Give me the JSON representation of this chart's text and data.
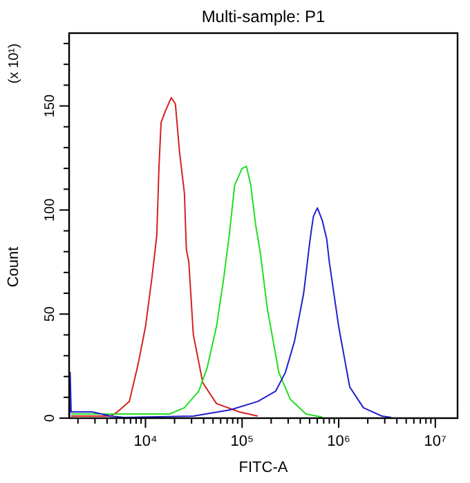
{
  "chart_data": {
    "type": "line",
    "title": "Multi-sample: P1",
    "xlabel": "FITC-A",
    "ylabel": "Count",
    "annotations": [
      "(x 10¹)"
    ],
    "log": "x",
    "marker": "none",
    "grid": false,
    "xlim": [
      1620,
      17000000
    ],
    "xticks": [
      {
        "value": 2000,
        "label": null
      },
      {
        "value": 3000,
        "label": null
      },
      {
        "value": 4000,
        "label": null
      },
      {
        "value": 5000,
        "label": null
      },
      {
        "value": 6000,
        "label": null
      },
      {
        "value": 7000,
        "label": null
      },
      {
        "value": 8000,
        "label": null
      },
      {
        "value": 9000,
        "label": null
      },
      {
        "value": 10000,
        "label": "10⁴"
      },
      {
        "value": 20000,
        "label": null
      },
      {
        "value": 30000,
        "label": null
      },
      {
        "value": 40000,
        "label": null
      },
      {
        "value": 50000,
        "label": null
      },
      {
        "value": 60000,
        "label": null
      },
      {
        "value": 70000,
        "label": null
      },
      {
        "value": 80000,
        "label": null
      },
      {
        "value": 90000,
        "label": null
      },
      {
        "value": 100000,
        "label": "10⁵"
      },
      {
        "value": 200000,
        "label": null
      },
      {
        "value": 300000,
        "label": null
      },
      {
        "value": 400000,
        "label": null
      },
      {
        "value": 500000,
        "label": null
      },
      {
        "value": 600000,
        "label": null
      },
      {
        "value": 700000,
        "label": null
      },
      {
        "value": 800000,
        "label": null
      },
      {
        "value": 900000,
        "label": null
      },
      {
        "value": 1000000,
        "label": "10⁶"
      },
      {
        "value": 2000000,
        "label": null
      },
      {
        "value": 3000000,
        "label": null
      },
      {
        "value": 4000000,
        "label": null
      },
      {
        "value": 5000000,
        "label": null
      },
      {
        "value": 6000000,
        "label": null
      },
      {
        "value": 7000000,
        "label": null
      },
      {
        "value": 8000000,
        "label": null
      },
      {
        "value": 9000000,
        "label": null
      },
      {
        "value": 10000000,
        "label": "10⁷"
      }
    ],
    "ylim": [
      0,
      185
    ],
    "yticks": [
      0,
      {
        "value": 10,
        "label": null
      },
      {
        "value": 20,
        "label": null
      },
      {
        "value": 30,
        "label": null
      },
      {
        "value": 40,
        "label": null
      },
      50,
      {
        "value": 60,
        "label": null
      },
      {
        "value": 70,
        "label": null
      },
      {
        "value": 80,
        "label": null
      },
      {
        "value": 90,
        "label": null
      },
      100,
      {
        "value": 110,
        "label": null
      },
      {
        "value": 120,
        "label": null
      },
      {
        "value": 130,
        "label": null
      },
      {
        "value": 140,
        "label": null
      },
      150,
      {
        "value": 160,
        "label": null
      },
      {
        "value": 170,
        "label": null
      },
      {
        "value": 180,
        "label": null
      }
    ],
    "series": [
      {
        "color": "#d62020",
        "x": [
          1700,
          4365,
          5130,
          6800,
          8400,
          10000,
          11700,
          13100,
          13800,
          14500,
          16200,
          18500,
          20400,
          22500,
          25300,
          26500,
          28100,
          31300,
          39200,
          54300,
          93800,
          145000
        ],
        "values": [
          1,
          1,
          3,
          8,
          26,
          44,
          68,
          88,
          121,
          142,
          148,
          154,
          151,
          128,
          108,
          81,
          75,
          40,
          17,
          7,
          3,
          1
        ]
      },
      {
        "color": "#22dd22",
        "x": [
          1700,
          17800,
          25300,
          35600,
          43400,
          54300,
          64000,
          73700,
          83800,
          100000,
          111000,
          123000,
          138000,
          155000,
          182000,
          240000,
          316000,
          458000,
          676000
        ],
        "values": [
          2,
          2,
          5,
          13,
          24,
          44,
          66,
          88,
          112,
          120,
          121,
          112,
          93,
          79,
          53,
          22,
          9,
          2,
          0.5
        ]
      },
      {
        "color": "#2020cc",
        "x": [
          1640,
          1660,
          1700,
          2820,
          4365,
          6000,
          31300,
          75400,
          145000,
          223000,
          281000,
          349000,
          434000,
          500000,
          520000,
          548000,
          602000,
          676000,
          752000,
          800000,
          1000000,
          1300000,
          1800000,
          2800000,
          3500000
        ],
        "values": [
          0,
          22,
          3,
          3,
          1,
          0.3,
          1,
          4,
          8,
          13,
          22,
          37,
          60,
          84,
          90,
          97,
          101,
          95,
          86,
          75,
          44,
          15,
          5,
          1,
          0.3
        ]
      }
    ]
  }
}
